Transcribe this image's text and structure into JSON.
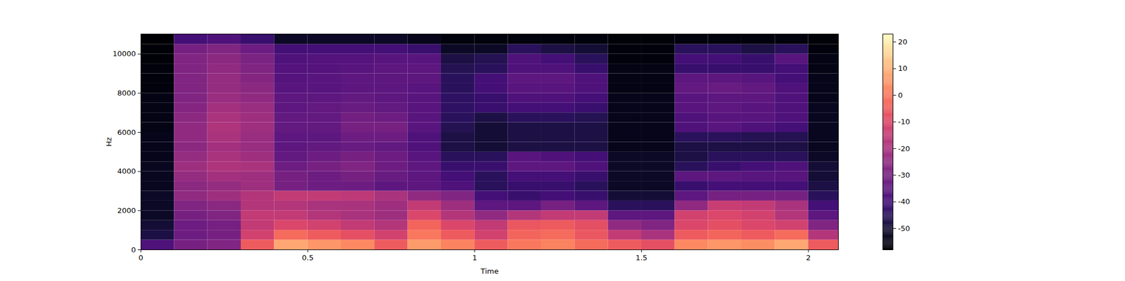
{
  "chart_data": {
    "type": "heatmap",
    "xlabel": "Time",
    "ylabel": "Hz",
    "color": "magma",
    "xlim": [
      0,
      2.09
    ],
    "ylim": [
      0,
      11025
    ],
    "xticks": [
      0,
      0.5,
      1,
      1.5,
      2
    ],
    "yticks": [
      0,
      2000,
      4000,
      6000,
      8000,
      10000
    ],
    "x_edges": [
      0,
      0.1,
      0.2,
      0.3,
      0.4,
      0.5,
      0.6,
      0.7,
      0.8,
      0.9,
      1.0,
      1.1,
      1.2,
      1.3,
      1.4,
      1.5,
      1.6,
      1.7,
      1.8,
      1.9,
      2.0,
      2.09
    ],
    "y_edges": [
      0,
      500,
      1000,
      1500,
      2000,
      2500,
      3000,
      3500,
      4000,
      4500,
      5000,
      5500,
      6000,
      6500,
      7000,
      7500,
      8000,
      8500,
      9000,
      9500,
      10000,
      10500,
      11025
    ],
    "cells": [
      [
        -38,
        -30,
        -28,
        -5,
        8,
        5,
        3,
        -5,
        6,
        2,
        -5,
        0,
        2,
        -2,
        -5,
        -8,
        3,
        5,
        4,
        8,
        -5
      ],
      [
        -48,
        -32,
        -30,
        -12,
        -2,
        -5,
        -8,
        -12,
        0,
        -5,
        -12,
        -3,
        -2,
        -6,
        -15,
        -20,
        -5,
        -3,
        -5,
        -2,
        -18
      ],
      [
        -50,
        -32,
        -30,
        -15,
        -10,
        -12,
        -15,
        -18,
        -3,
        -10,
        -15,
        -6,
        -5,
        -8,
        -25,
        -28,
        -10,
        -8,
        -10,
        -12,
        -28
      ],
      [
        -52,
        -30,
        -28,
        -15,
        -15,
        -18,
        -20,
        -22,
        -10,
        -18,
        -25,
        -18,
        -15,
        -15,
        -35,
        -35,
        -12,
        -10,
        -12,
        -18,
        -35
      ],
      [
        -52,
        -28,
        -26,
        -18,
        -18,
        -20,
        -20,
        -22,
        -15,
        -22,
        -35,
        -35,
        -30,
        -35,
        -45,
        -45,
        -25,
        -14,
        -15,
        -20,
        -40
      ],
      [
        -52,
        -25,
        -22,
        -18,
        -15,
        -15,
        -16,
        -20,
        -25,
        -28,
        -40,
        -42,
        -40,
        -42,
        -50,
        -50,
        -35,
        -30,
        -30,
        -30,
        -45
      ],
      [
        -53,
        -26,
        -24,
        -22,
        -30,
        -32,
        -32,
        -35,
        -35,
        -38,
        -45,
        -42,
        -42,
        -45,
        -52,
        -52,
        -42,
        -40,
        -40,
        -40,
        -48
      ],
      [
        -53,
        -24,
        -21,
        -22,
        -30,
        -32,
        -30,
        -33,
        -35,
        -40,
        -45,
        -40,
        -40,
        -42,
        -52,
        -52,
        -35,
        -35,
        -36,
        -36,
        -50
      ],
      [
        -53,
        -22,
        -19,
        -20,
        -32,
        -30,
        -28,
        -32,
        -35,
        -42,
        -42,
        -35,
        -35,
        -38,
        -52,
        -52,
        -45,
        -42,
        -40,
        -38,
        -50
      ],
      [
        -54,
        -24,
        -20,
        -22,
        -34,
        -32,
        -30,
        -32,
        -36,
        -45,
        -45,
        -36,
        -38,
        -40,
        -52,
        -52,
        -48,
        -45,
        -45,
        -45,
        -52
      ],
      [
        -54,
        -26,
        -21,
        -23,
        -35,
        -34,
        -33,
        -34,
        -38,
        -48,
        -50,
        -48,
        -48,
        -48,
        -54,
        -54,
        -48,
        -48,
        -48,
        -48,
        -53
      ],
      [
        -54,
        -25,
        -20,
        -23,
        -35,
        -35,
        -32,
        -32,
        -38,
        -48,
        -50,
        -48,
        -48,
        -48,
        -54,
        -54,
        -45,
        -45,
        -46,
        -46,
        -53
      ],
      [
        -55,
        -25,
        -19,
        -22,
        -34,
        -34,
        -30,
        -30,
        -36,
        -46,
        -50,
        -48,
        -48,
        -48,
        -54,
        -54,
        -38,
        -36,
        -38,
        -40,
        -53
      ],
      [
        -55,
        -26,
        -20,
        -22,
        -34,
        -34,
        -31,
        -32,
        -36,
        -45,
        -48,
        -45,
        -45,
        -46,
        -54,
        -54,
        -38,
        -36,
        -36,
        -38,
        -53
      ],
      [
        -55,
        -27,
        -21,
        -23,
        -35,
        -34,
        -33,
        -34,
        -36,
        -44,
        -42,
        -40,
        -40,
        -42,
        -54,
        -54,
        -36,
        -35,
        -36,
        -38,
        -53
      ],
      [
        -55,
        -28,
        -23,
        -25,
        -35,
        -35,
        -34,
        -35,
        -36,
        -44,
        -42,
        -38,
        -38,
        -40,
        -54,
        -54,
        -36,
        -35,
        -35,
        -38,
        -54
      ],
      [
        -56,
        -28,
        -24,
        -26,
        -36,
        -36,
        -35,
        -35,
        -36,
        -45,
        -40,
        -36,
        -36,
        -38,
        -55,
        -55,
        -34,
        -33,
        -34,
        -38,
        -54
      ],
      [
        -56,
        -28,
        -24,
        -27,
        -37,
        -36,
        -35,
        -35,
        -35,
        -45,
        -40,
        -35,
        -35,
        -38,
        -55,
        -55,
        -35,
        -35,
        -36,
        -40,
        -54
      ],
      [
        -56,
        -28,
        -25,
        -28,
        -37,
        -37,
        -36,
        -35,
        -35,
        -46,
        -45,
        -38,
        -38,
        -42,
        -55,
        -55,
        -42,
        -42,
        -42,
        -40,
        -55
      ],
      [
        -57,
        -28,
        -26,
        -29,
        -38,
        -37,
        -37,
        -36,
        -36,
        -48,
        -46,
        -38,
        -40,
        -45,
        -56,
        -56,
        -40,
        -40,
        -42,
        -36,
        -55
      ],
      [
        -57,
        -30,
        -28,
        -32,
        -40,
        -40,
        -40,
        -40,
        -42,
        -52,
        -52,
        -45,
        -48,
        -50,
        -56,
        -56,
        -45,
        -45,
        -48,
        -45,
        -56
      ],
      [
        -58,
        -40,
        -38,
        -42,
        -52,
        -52,
        -52,
        -52,
        -54,
        -56,
        -56,
        -56,
        -56,
        -56,
        -57,
        -57,
        -56,
        -56,
        -56,
        -56,
        -57
      ]
    ],
    "colorbar": {
      "range": [
        -58,
        23
      ],
      "ticks": [
        -50,
        -40,
        -30,
        -20,
        -10,
        0,
        10,
        20
      ]
    }
  }
}
